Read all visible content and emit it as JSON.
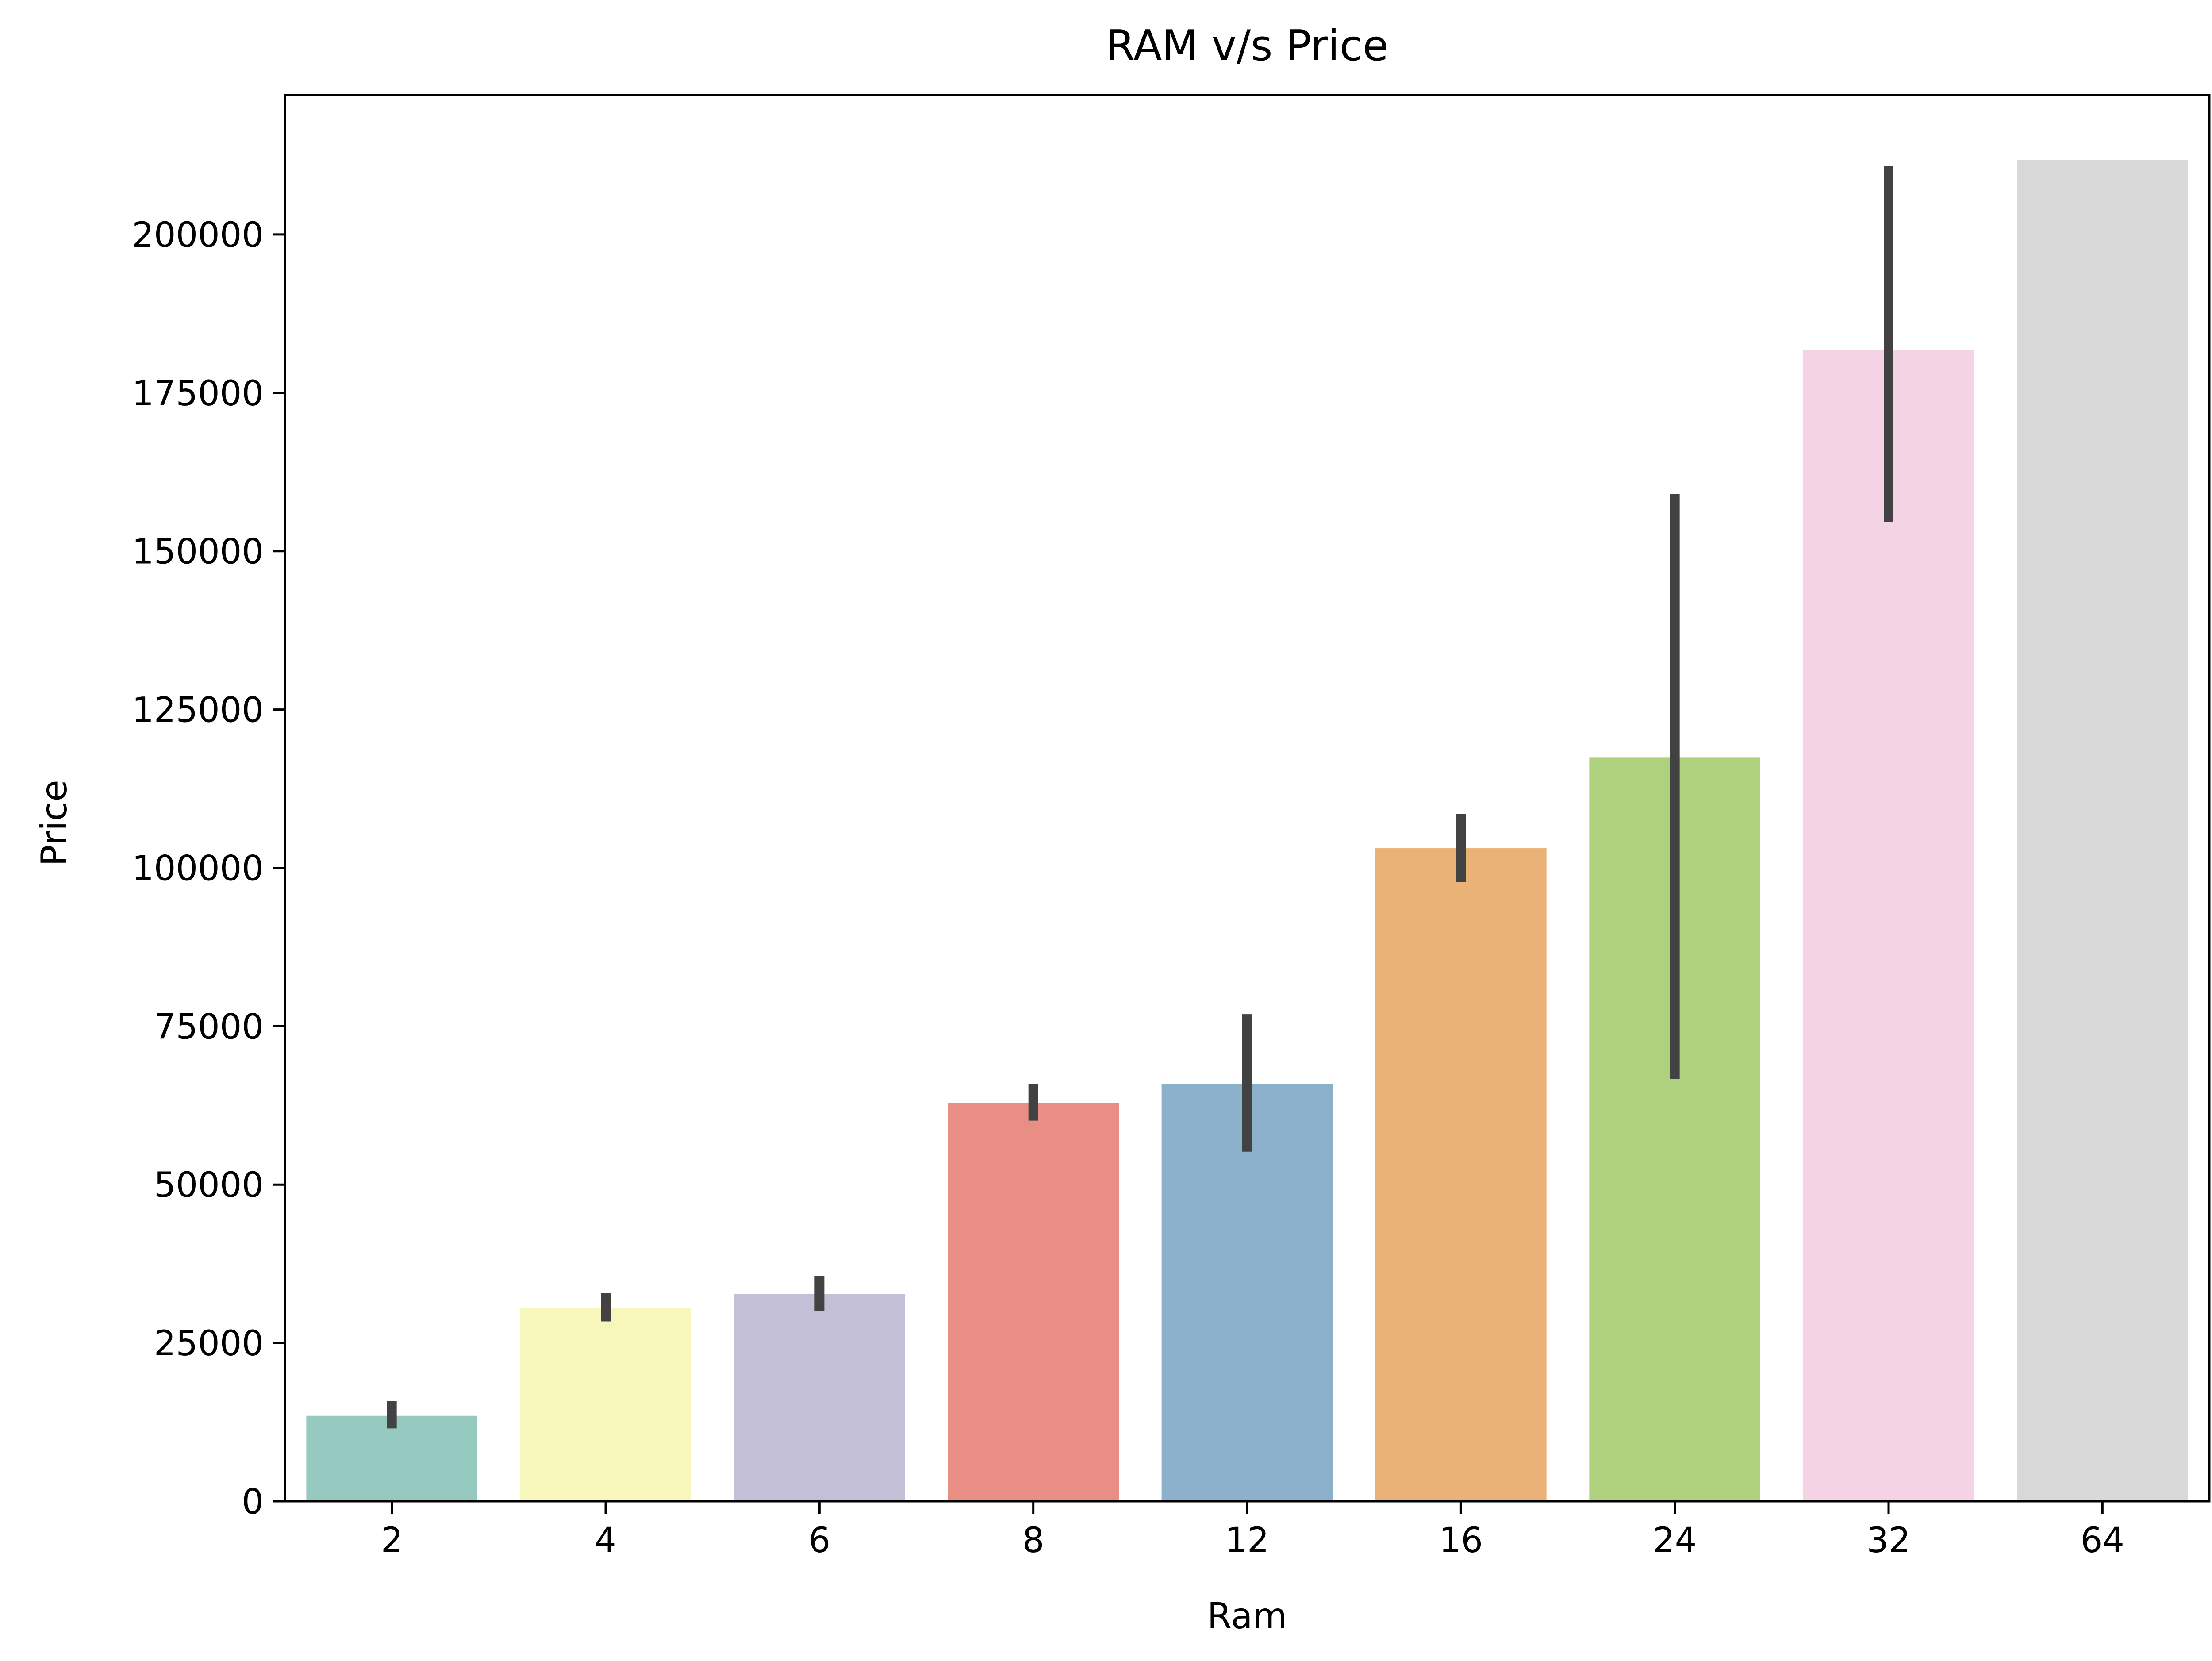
{
  "chart_data": {
    "type": "bar",
    "title": "RAM v/s Price",
    "xlabel": "Ram",
    "ylabel": "Price",
    "categories": [
      "2",
      "4",
      "6",
      "8",
      "12",
      "16",
      "24",
      "32",
      "64"
    ],
    "values": [
      13500,
      30500,
      32700,
      62800,
      65900,
      103100,
      117400,
      181700,
      211800
    ],
    "error_bars": [
      [
        11500,
        15800
      ],
      [
        28400,
        32900
      ],
      [
        30000,
        35600
      ],
      [
        60100,
        65900
      ],
      [
        55200,
        76900
      ],
      [
        97800,
        108500
      ],
      [
        66700,
        159000
      ],
      [
        154600,
        210800
      ],
      null
    ],
    "colors": [
      "#96cac0",
      "#f7f7bc",
      "#c2bfd6",
      "#e98e85",
      "#8bb0c9",
      "#eab277",
      "#afd07c",
      "#f4d4e4",
      "#d9d9d9"
    ],
    "error_color": "#424242",
    "ylim": [
      0,
      222000
    ],
    "yticks": [
      0,
      25000,
      50000,
      75000,
      100000,
      125000,
      150000,
      175000,
      200000
    ],
    "ytick_labels": [
      "0",
      "25000",
      "50000",
      "75000",
      "100000",
      "125000",
      "150000",
      "175000",
      "200000"
    ],
    "grid": false,
    "legend": "none"
  }
}
